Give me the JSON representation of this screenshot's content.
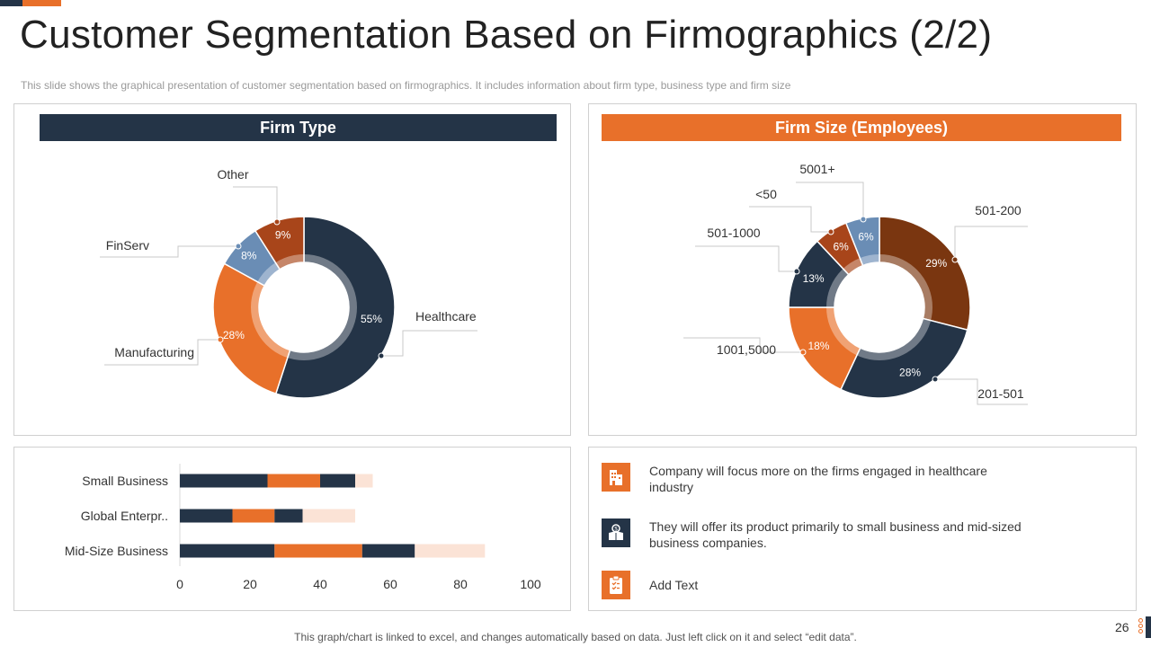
{
  "title": "Customer Segmentation Based on Firmographics (2/2)",
  "subtitle": "This slide shows the graphical presentation of customer segmentation based on firmographics. It includes information about firm type, business type and firm size",
  "colors": {
    "navy": "#243447",
    "orange": "#e8702a",
    "blue": "#6a8db5",
    "rust": "#a8451a",
    "brown": "#7a3610",
    "peach": "#fbe3d6"
  },
  "chart_data": [
    {
      "type": "pie",
      "variant": "donut",
      "title": "Firm Type",
      "slices": [
        {
          "label": "Healthcare",
          "value": 55,
          "display": "55%",
          "color": "#243447"
        },
        {
          "label": "Manufacturing",
          "value": 28,
          "display": "28%",
          "color": "#e8702a"
        },
        {
          "label": "FinServ",
          "value": 8,
          "display": "8%",
          "color": "#6a8db5"
        },
        {
          "label": "Other",
          "value": 9,
          "display": "9%",
          "color": "#a8451a"
        }
      ]
    },
    {
      "type": "pie",
      "variant": "donut",
      "title": "Firm Size (Employees)",
      "slices": [
        {
          "label": "501-200",
          "value": 29,
          "display": "29%",
          "color": "#7a3610"
        },
        {
          "label": "201-501",
          "value": 28,
          "display": "28%",
          "color": "#243447"
        },
        {
          "label": "1001,5000",
          "value": 18,
          "display": "18%",
          "color": "#e8702a"
        },
        {
          "label": "501-1000",
          "value": 13,
          "display": "13%",
          "color": "#243447"
        },
        {
          "label": "<50",
          "value": 6,
          "display": "6%",
          "color": "#a8451a"
        },
        {
          "label": "5001+",
          "value": 6,
          "display": "6%",
          "color": "#6a8db5"
        }
      ]
    },
    {
      "type": "bar",
      "orientation": "horizontal",
      "stacked": true,
      "categories": [
        "Small Business",
        "Global Enterpr..",
        "Mid-Size Business"
      ],
      "series": [
        {
          "name": "Series 1",
          "color": "#243447",
          "values": [
            25,
            15,
            27
          ]
        },
        {
          "name": "Series 2",
          "color": "#e8702a",
          "values": [
            15,
            12,
            25
          ]
        },
        {
          "name": "Series 3",
          "color": "#243447",
          "values": [
            10,
            8,
            15
          ]
        },
        {
          "name": "Series 4",
          "color": "#fbe3d6",
          "values": [
            5,
            15,
            20
          ]
        }
      ],
      "xlim": [
        0,
        100
      ],
      "xticks": [
        0,
        20,
        40,
        60,
        80,
        100
      ],
      "legend": "none"
    }
  ],
  "info_items": [
    {
      "icon": "building-icon",
      "text": "Company will focus more on the firms engaged in healthcare industry",
      "color": "#e8702a"
    },
    {
      "icon": "money-box-icon",
      "text": "They will offer its product primarily to small business and mid-sized business companies.",
      "color": "#243447"
    },
    {
      "icon": "clipboard-icon",
      "text": "Add Text",
      "color": "#e8702a"
    }
  ],
  "footer": "This graph/chart is linked to excel, and changes automatically based on data. Just left click on it and select “edit data”.",
  "page_number": "26"
}
